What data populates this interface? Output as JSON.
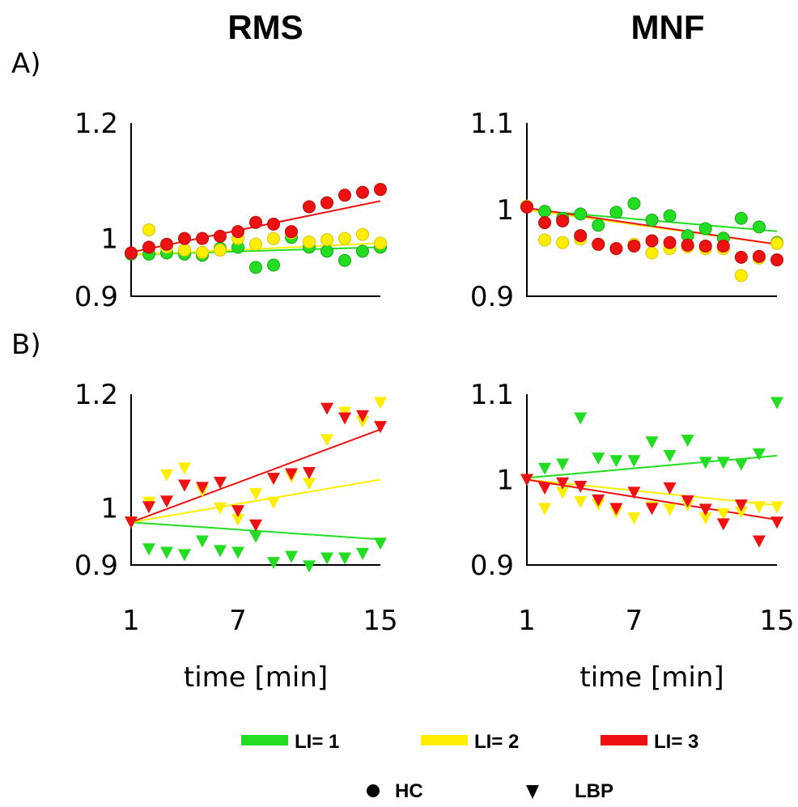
{
  "figure": {
    "col_titles": [
      "RMS",
      "MNF"
    ],
    "row_labels": [
      "A)",
      "B)"
    ],
    "xlabel": "time [min]",
    "legend": {
      "lines": [
        {
          "label": "LI= 1",
          "color": "#22dd22"
        },
        {
          "label": "LI= 2",
          "color": "#ffee00"
        },
        {
          "label": "LI= 3",
          "color": "#ee1111"
        }
      ],
      "markers": [
        {
          "label": "HC",
          "symbol": "circle"
        },
        {
          "label": "LBP",
          "symbol": "triangle-down"
        }
      ]
    }
  },
  "chart_data": [
    {
      "type": "scatter",
      "id": "A-RMS",
      "marker": "circle",
      "xlim": [
        1,
        15
      ],
      "ylim": [
        0.9,
        1.2
      ],
      "xticks": [
        "1",
        "7",
        "15"
      ],
      "yticks": [
        "0.9",
        "1",
        "1.2"
      ],
      "xlabel": "",
      "series": [
        {
          "name": "LI= 1",
          "color": "#22dd22",
          "x": [
            1,
            2,
            3,
            4,
            5,
            6,
            7,
            8,
            9,
            10,
            11,
            12,
            13,
            14,
            15
          ],
          "y": [
            0.973,
            0.973,
            0.975,
            0.973,
            0.971,
            0.983,
            0.985,
            0.95,
            0.954,
            1.002,
            0.985,
            0.978,
            0.962,
            0.978,
            0.985
          ],
          "fit": [
            0.972,
            0.985
          ]
        },
        {
          "name": "LI= 2",
          "color": "#ffee00",
          "x": [
            1,
            2,
            3,
            4,
            5,
            6,
            7,
            8,
            9,
            10,
            11,
            12,
            13,
            14,
            15
          ],
          "y": [
            0.975,
            1.015,
            0.985,
            0.98,
            0.976,
            0.98,
            1.0,
            0.99,
            1.0,
            1.01,
            0.994,
            0.998,
            1.0,
            1.007,
            0.992
          ],
          "fit": [
            0.972,
            0.992
          ]
        },
        {
          "name": "LI= 3",
          "color": "#ee1111",
          "x": [
            1,
            2,
            3,
            4,
            5,
            6,
            7,
            8,
            9,
            10,
            11,
            12,
            13,
            14,
            15
          ],
          "y": [
            0.975,
            0.985,
            0.99,
            1.0,
            1.0,
            1.004,
            1.012,
            1.028,
            1.025,
            1.012,
            1.055,
            1.062,
            1.075,
            1.08,
            1.085
          ],
          "fit": [
            0.976,
            1.065
          ]
        }
      ]
    },
    {
      "type": "scatter",
      "id": "A-MNF",
      "marker": "circle",
      "xlim": [
        1,
        15
      ],
      "ylim": [
        0.9,
        1.1
      ],
      "xticks": [
        "1",
        "7",
        "15"
      ],
      "yticks": [
        "0.9",
        "1",
        "1.1"
      ],
      "xlabel": "",
      "series": [
        {
          "name": "LI= 1",
          "color": "#22dd22",
          "x": [
            1,
            2,
            3,
            4,
            5,
            6,
            7,
            8,
            9,
            10,
            11,
            12,
            13,
            14,
            15
          ],
          "y": [
            1.004,
            0.998,
            0.99,
            0.995,
            0.982,
            0.997,
            1.007,
            0.988,
            0.993,
            0.97,
            0.978,
            0.967,
            0.99,
            0.98,
            0.962
          ],
          "fit": [
            1.0,
            0.975
          ]
        },
        {
          "name": "LI= 2",
          "color": "#ffee00",
          "x": [
            1,
            2,
            3,
            4,
            5,
            6,
            7,
            8,
            9,
            10,
            11,
            12,
            13,
            14,
            15
          ],
          "y": [
            1.004,
            0.965,
            0.962,
            0.966,
            0.96,
            0.955,
            0.96,
            0.95,
            0.955,
            0.957,
            0.955,
            0.955,
            0.924,
            0.944,
            0.961
          ],
          "fit": [
            1.0,
            0.96
          ]
        },
        {
          "name": "LI= 3",
          "color": "#ee1111",
          "x": [
            1,
            2,
            3,
            4,
            5,
            6,
            7,
            8,
            9,
            10,
            11,
            12,
            13,
            14,
            15
          ],
          "y": [
            1.003,
            0.985,
            0.987,
            0.97,
            0.96,
            0.955,
            0.958,
            0.964,
            0.962,
            0.959,
            0.958,
            0.958,
            0.945,
            0.946,
            0.942
          ],
          "fit": [
            1.002,
            0.96
          ]
        }
      ]
    },
    {
      "type": "scatter",
      "id": "B-RMS",
      "marker": "triangle-down",
      "xlim": [
        1,
        15
      ],
      "ylim": [
        0.9,
        1.2
      ],
      "xticks": [
        "1",
        "7",
        "15"
      ],
      "yticks": [
        "0.9",
        "1",
        "1.2"
      ],
      "xlabel": "time [min]",
      "series": [
        {
          "name": "LI= 1",
          "color": "#22dd22",
          "x": [
            1,
            2,
            3,
            4,
            5,
            6,
            7,
            8,
            9,
            10,
            11,
            12,
            13,
            14,
            15
          ],
          "y": [
            0.975,
            0.928,
            0.922,
            0.918,
            0.942,
            0.925,
            0.922,
            0.95,
            0.904,
            0.915,
            0.898,
            0.912,
            0.912,
            0.92,
            0.938
          ],
          "fit": [
            0.975,
            0.945
          ]
        },
        {
          "name": "LI= 2",
          "color": "#ffee00",
          "x": [
            1,
            2,
            3,
            4,
            5,
            6,
            7,
            8,
            9,
            10,
            11,
            12,
            13,
            14,
            15
          ],
          "y": [
            0.975,
            1.01,
            1.058,
            1.07,
            1.03,
            1.0,
            0.98,
            1.025,
            1.01,
            1.055,
            1.043,
            1.12,
            1.168,
            1.152,
            1.185
          ],
          "fit": [
            0.975,
            1.05
          ]
        },
        {
          "name": "LI= 3",
          "color": "#ee1111",
          "x": [
            1,
            2,
            3,
            4,
            5,
            6,
            7,
            8,
            9,
            10,
            11,
            12,
            13,
            14,
            15
          ],
          "y": [
            0.975,
            1.002,
            1.012,
            1.04,
            1.036,
            1.045,
            0.995,
            0.97,
            1.052,
            1.06,
            1.062,
            1.175,
            1.158,
            1.162,
            1.143
          ],
          "fit": [
            0.975,
            1.138
          ]
        }
      ]
    },
    {
      "type": "scatter",
      "id": "B-MNF",
      "marker": "triangle-down",
      "xlim": [
        1,
        15
      ],
      "ylim": [
        0.9,
        1.1
      ],
      "xticks": [
        "1",
        "7",
        "15"
      ],
      "yticks": [
        "0.9",
        "1",
        "1.1"
      ],
      "xlabel": "time [min]",
      "series": [
        {
          "name": "LI= 1",
          "color": "#22dd22",
          "x": [
            1,
            2,
            3,
            4,
            5,
            6,
            7,
            8,
            9,
            10,
            11,
            12,
            13,
            14,
            15
          ],
          "y": [
            1.0,
            1.013,
            1.018,
            1.072,
            1.025,
            1.022,
            1.022,
            1.044,
            1.028,
            1.046,
            1.02,
            1.02,
            1.018,
            1.03,
            1.09
          ],
          "fit": [
            1.002,
            1.028
          ]
        },
        {
          "name": "LI= 2",
          "color": "#ffee00",
          "x": [
            1,
            2,
            3,
            4,
            5,
            6,
            7,
            8,
            9,
            10,
            11,
            12,
            13,
            14,
            15
          ],
          "y": [
            1.0,
            0.966,
            0.985,
            0.974,
            0.971,
            0.962,
            0.955,
            0.968,
            0.965,
            0.97,
            0.955,
            0.96,
            0.962,
            0.968,
            0.968
          ],
          "fit": [
            1.0,
            0.97
          ]
        },
        {
          "name": "LI= 3",
          "color": "#ee1111",
          "x": [
            1,
            2,
            3,
            4,
            5,
            6,
            7,
            8,
            9,
            10,
            11,
            12,
            13,
            14,
            15
          ],
          "y": [
            1.0,
            0.99,
            0.996,
            0.992,
            0.976,
            0.966,
            0.985,
            0.966,
            0.99,
            0.975,
            0.965,
            0.948,
            0.97,
            0.928,
            0.95
          ],
          "fit": [
            1.0,
            0.953
          ]
        }
      ]
    }
  ]
}
